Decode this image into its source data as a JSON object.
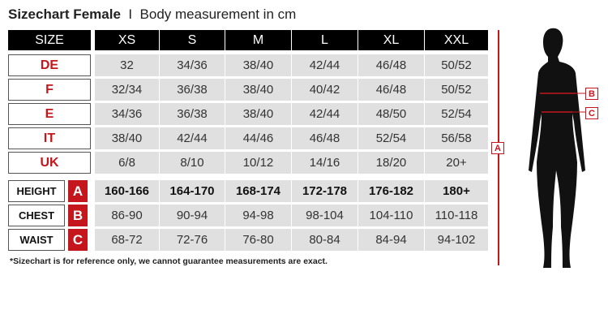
{
  "title": {
    "bold": "Sizechart Female",
    "separator": "I",
    "subtitle": "Body measurement in cm"
  },
  "size_header": "SIZE",
  "sizes": [
    "XS",
    "S",
    "M",
    "L",
    "XL",
    "XXL"
  ],
  "conversion_rows": [
    {
      "label": "DE",
      "values": [
        "32",
        "34/36",
        "38/40",
        "42/44",
        "46/48",
        "50/52"
      ]
    },
    {
      "label": "F",
      "values": [
        "32/34",
        "36/38",
        "38/40",
        "40/42",
        "46/48",
        "50/52"
      ]
    },
    {
      "label": "E",
      "values": [
        "34/36",
        "36/38",
        "38/40",
        "42/44",
        "48/50",
        "52/54"
      ]
    },
    {
      "label": "IT",
      "values": [
        "38/40",
        "42/44",
        "44/46",
        "46/48",
        "52/54",
        "56/58"
      ]
    },
    {
      "label": "UK",
      "values": [
        "6/8",
        "8/10",
        "10/12",
        "14/16",
        "18/20",
        "20+"
      ]
    }
  ],
  "measurement_rows": [
    {
      "label": "HEIGHT",
      "letter": "A",
      "values": [
        "160-166",
        "164-170",
        "168-174",
        "172-178",
        "176-182",
        "180+"
      ]
    },
    {
      "label": "CHEST",
      "letter": "B",
      "values": [
        "86-90",
        "90-94",
        "94-98",
        "98-104",
        "104-110",
        "110-118"
      ]
    },
    {
      "label": "WAIST",
      "letter": "C",
      "values": [
        "68-72",
        "72-76",
        "76-80",
        "80-84",
        "84-94",
        "94-102"
      ]
    }
  ],
  "footnote": "*Sizechart is for reference only, we cannot guarantee measurements are exact.",
  "figure_markers": {
    "height": "A",
    "chest": "B",
    "waist": "C"
  },
  "colors": {
    "accent": "#c4161c",
    "header": "#000000",
    "cell": "#e0e0e0"
  }
}
